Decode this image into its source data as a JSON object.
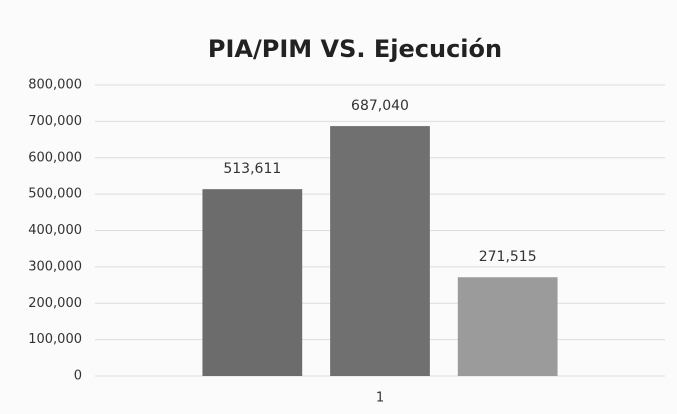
{
  "chart_data": {
    "type": "bar",
    "title": "PIA/PIM VS. Ejecución",
    "categories": [
      "1"
    ],
    "series": [
      {
        "color": "#6c6c6c",
        "values": [
          513611
        ],
        "value_labels": [
          "513,611"
        ]
      },
      {
        "color": "#707070",
        "values": [
          687040
        ],
        "value_labels": [
          "687,040"
        ]
      },
      {
        "color": "#9b9b9b",
        "values": [
          271515
        ],
        "value_labels": [
          "271,515"
        ]
      }
    ],
    "ylim": [
      0,
      800000
    ],
    "yticks": [
      0,
      {
        "value": 100000,
        "label": "100,000"
      },
      {
        "value": 200000,
        "label": "200,000"
      },
      {
        "value": 300000,
        "label": "300,000"
      },
      {
        "value": 400000,
        "label": "400,000"
      },
      {
        "value": 500000,
        "label": "500,000"
      },
      {
        "value": 600000,
        "label": "600,000"
      },
      {
        "value": 700000,
        "label": "700,000"
      },
      {
        "value": 800000,
        "label": "800,000"
      }
    ],
    "grid": true
  }
}
